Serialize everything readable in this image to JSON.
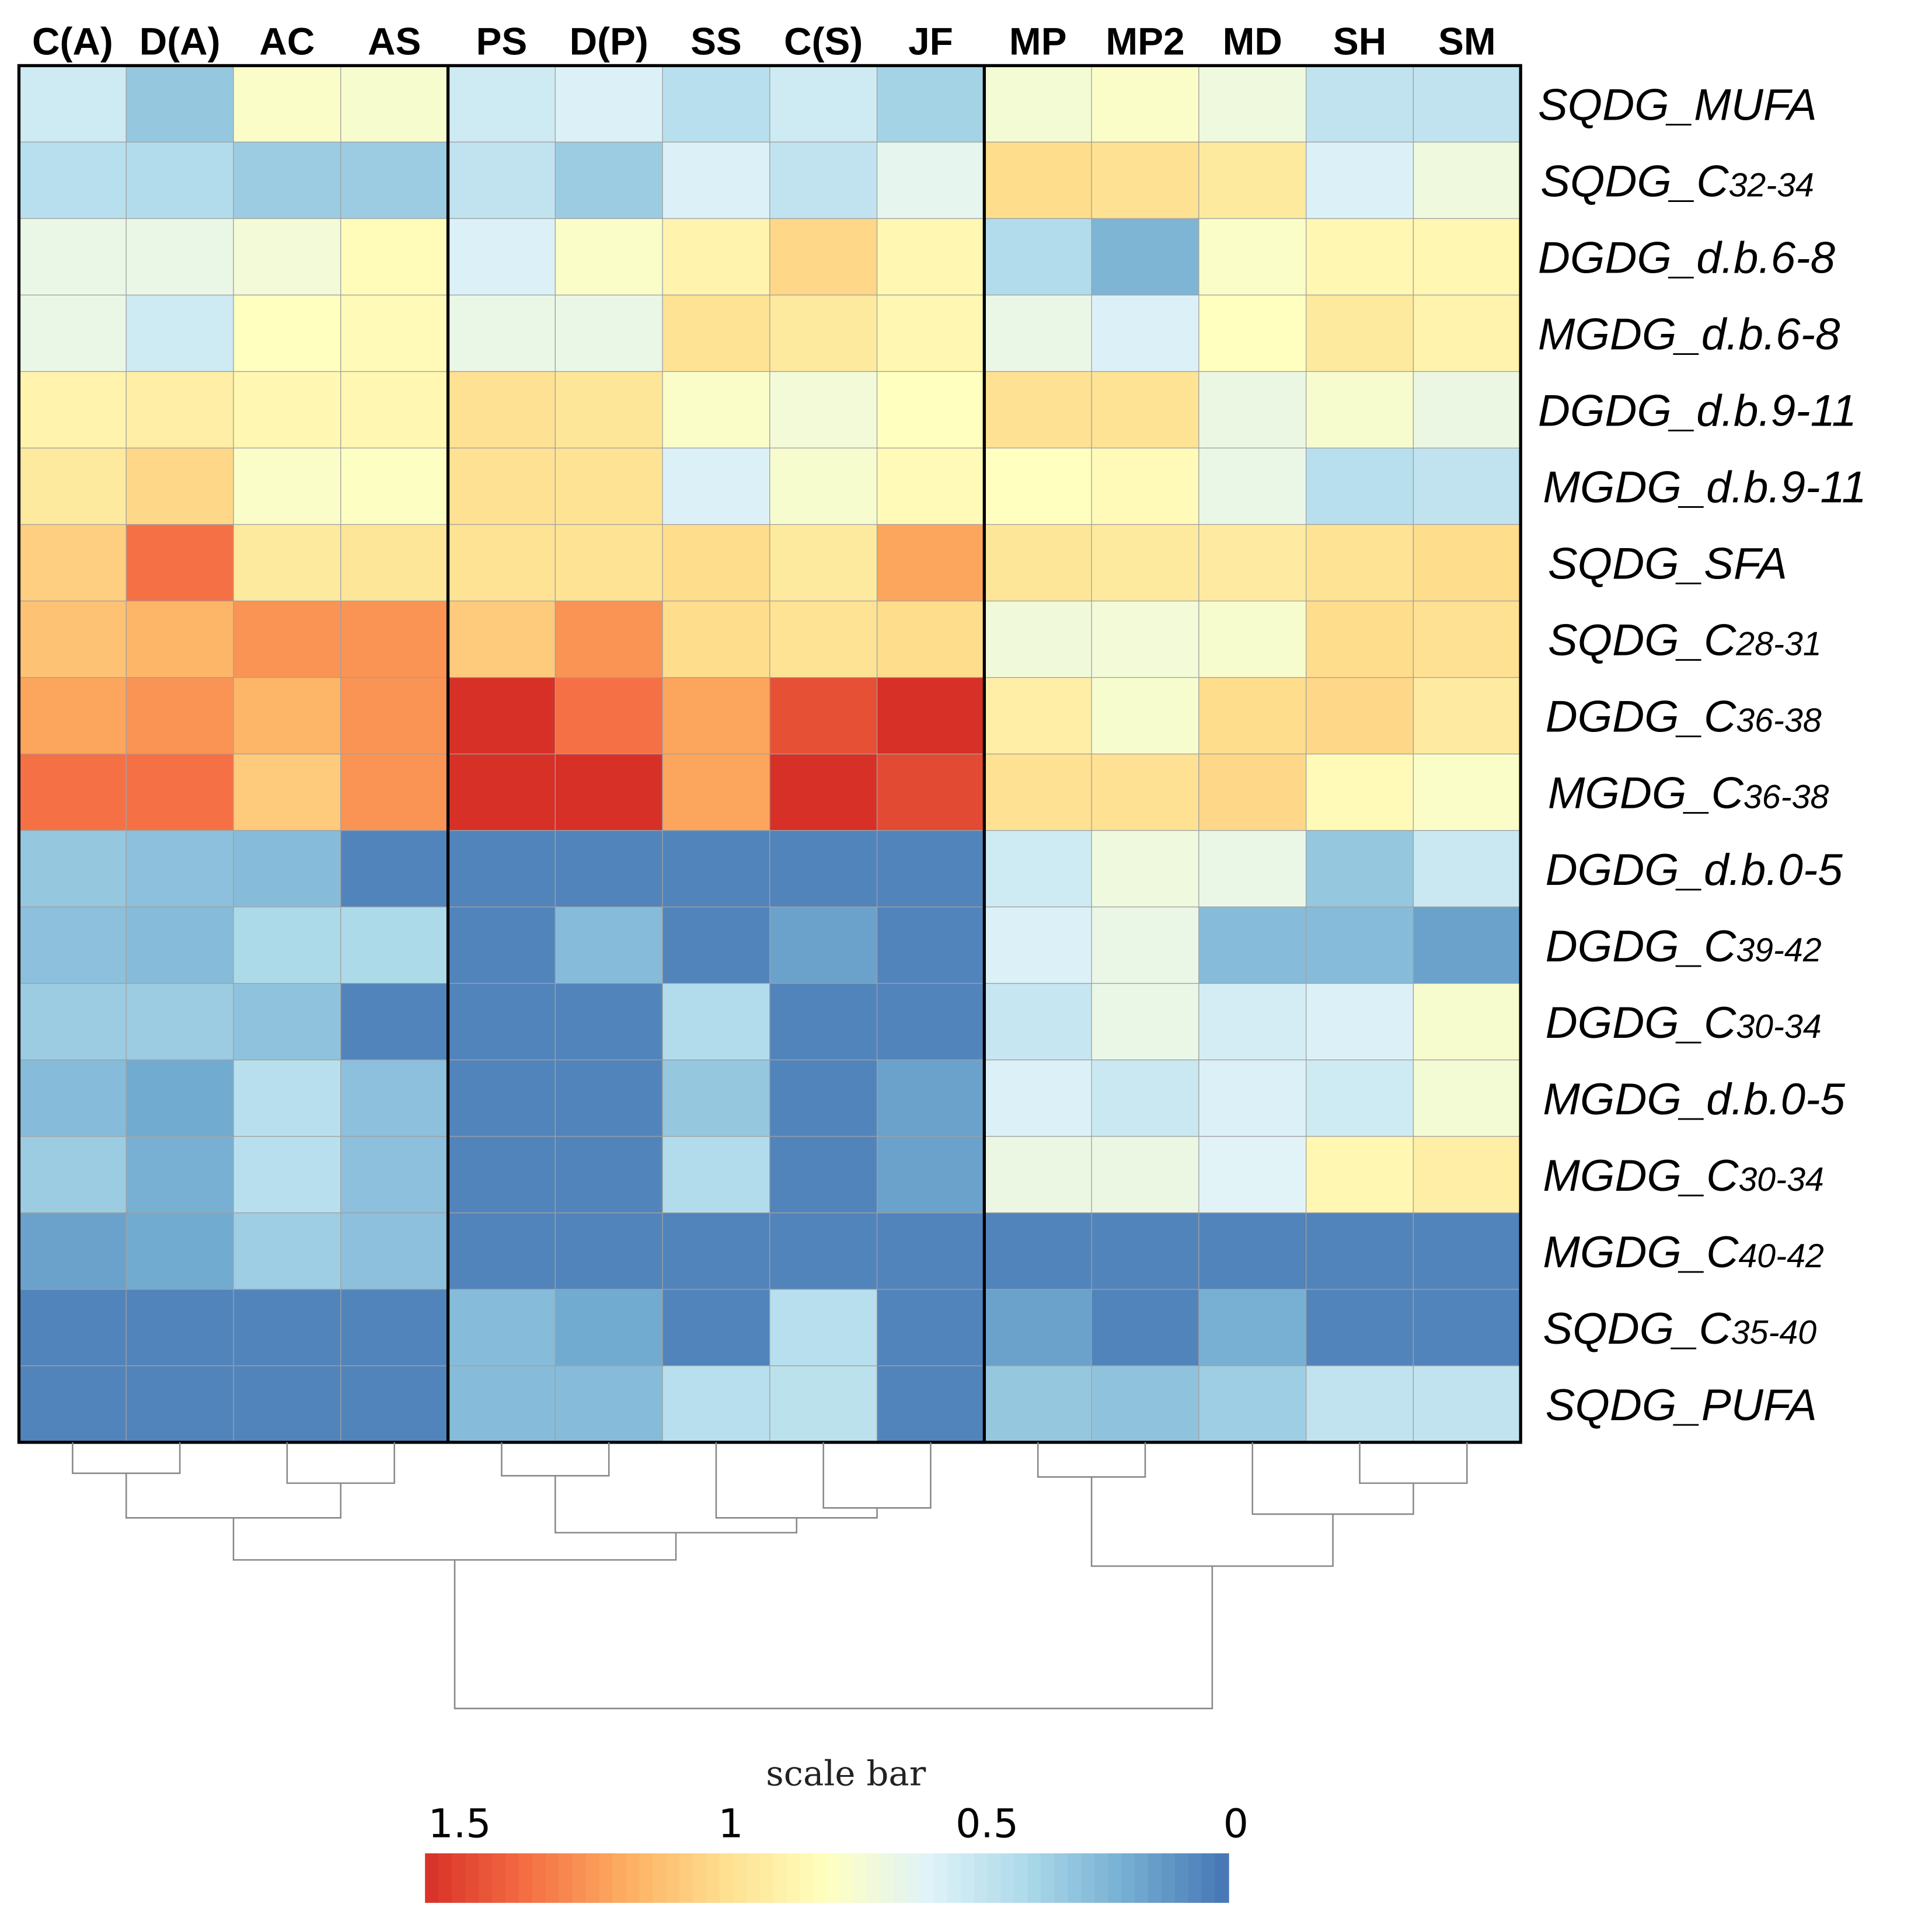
{
  "chart_data": {
    "type": "heatmap",
    "columns": [
      "C(A)",
      "D(A)",
      "AC",
      "AS",
      "PS",
      "D(P)",
      "SS",
      "C(S)",
      "JF",
      "MP",
      "MP2",
      "MD",
      "SH",
      "SM"
    ],
    "column_groups": [
      [
        "C(A)",
        "D(A)",
        "AC",
        "AS"
      ],
      [
        "PS",
        "D(P)",
        "SS",
        "C(S)",
        "JF"
      ],
      [
        "MP",
        "MP2",
        "MD",
        "SH",
        "SM"
      ]
    ],
    "rows": [
      {
        "main": "SQDG_MUFA",
        "sub": ""
      },
      {
        "main": "SQDG_C",
        "sub": "32-34"
      },
      {
        "main": "DGDG_d.b.6-8",
        "sub": ""
      },
      {
        "main": "MGDG_d.b.6-8",
        "sub": ""
      },
      {
        "main": "DGDG_d.b.9-11",
        "sub": ""
      },
      {
        "main": "MGDG_d.b.9-11",
        "sub": ""
      },
      {
        "main": "SQDG_SFA",
        "sub": ""
      },
      {
        "main": "SQDG_C",
        "sub": "28-31"
      },
      {
        "main": "DGDG_C",
        "sub": "36-38"
      },
      {
        "main": "MGDG_C",
        "sub": "36-38"
      },
      {
        "main": "DGDG_d.b.0-5",
        "sub": ""
      },
      {
        "main": "DGDG_C",
        "sub": "39-42"
      },
      {
        "main": "DGDG_C",
        "sub": "30-34"
      },
      {
        "main": "MGDG_d.b.0-5",
        "sub": ""
      },
      {
        "main": "MGDG_C",
        "sub": "30-34"
      },
      {
        "main": "MGDG_C",
        "sub": "40-42"
      },
      {
        "main": "SQDG_C",
        "sub": "35-40"
      },
      {
        "main": "SQDG_PUFA",
        "sub": ""
      }
    ],
    "values": [
      [
        0.5,
        0.3,
        0.72,
        0.7,
        0.5,
        0.55,
        0.42,
        0.5,
        0.35,
        0.68,
        0.72,
        0.65,
        0.45,
        0.45
      ],
      [
        0.42,
        0.4,
        0.32,
        0.32,
        0.45,
        0.32,
        0.55,
        0.45,
        0.6,
        0.95,
        0.93,
        0.88,
        0.55,
        0.65
      ],
      [
        0.62,
        0.62,
        0.67,
        0.77,
        0.55,
        0.72,
        0.82,
        0.97,
        0.8,
        0.4,
        0.22,
        0.72,
        0.8,
        0.8
      ],
      [
        0.62,
        0.5,
        0.75,
        0.78,
        0.62,
        0.62,
        0.92,
        0.88,
        0.8,
        0.62,
        0.55,
        0.75,
        0.88,
        0.82
      ],
      [
        0.82,
        0.85,
        0.8,
        0.8,
        0.93,
        0.9,
        0.72,
        0.67,
        0.75,
        0.93,
        0.92,
        0.63,
        0.7,
        0.63
      ],
      [
        0.88,
        0.97,
        0.72,
        0.74,
        0.93,
        0.92,
        0.55,
        0.7,
        0.78,
        0.75,
        0.78,
        0.62,
        0.42,
        0.45
      ],
      [
        1.0,
        1.3,
        0.88,
        0.9,
        0.92,
        0.92,
        0.95,
        0.88,
        1.15,
        0.9,
        0.88,
        0.87,
        0.92,
        0.95
      ],
      [
        1.05,
        1.1,
        1.2,
        1.2,
        1.02,
        1.2,
        0.95,
        0.92,
        0.95,
        0.66,
        0.67,
        0.7,
        0.95,
        0.93
      ],
      [
        1.15,
        1.2,
        1.1,
        1.2,
        1.5,
        1.3,
        1.15,
        1.4,
        1.5,
        0.85,
        0.7,
        0.95,
        0.97,
        0.87
      ],
      [
        1.3,
        1.3,
        1.02,
        1.2,
        1.5,
        1.5,
        1.15,
        1.5,
        1.42,
        0.93,
        0.93,
        0.97,
        0.78,
        0.72
      ],
      [
        0.3,
        0.27,
        0.25,
        0.05,
        0.05,
        0.05,
        0.05,
        0.05,
        0.05,
        0.5,
        0.65,
        0.62,
        0.3,
        0.48
      ],
      [
        0.27,
        0.25,
        0.38,
        0.38,
        0.05,
        0.25,
        0.05,
        0.15,
        0.05,
        0.55,
        0.62,
        0.25,
        0.25,
        0.15
      ],
      [
        0.32,
        0.32,
        0.28,
        0.05,
        0.05,
        0.05,
        0.4,
        0.05,
        0.05,
        0.47,
        0.62,
        0.52,
        0.55,
        0.7
      ],
      [
        0.25,
        0.18,
        0.42,
        0.27,
        0.05,
        0.05,
        0.3,
        0.05,
        0.15,
        0.55,
        0.48,
        0.55,
        0.5,
        0.68
      ],
      [
        0.32,
        0.2,
        0.42,
        0.27,
        0.05,
        0.05,
        0.4,
        0.05,
        0.15,
        0.63,
        0.63,
        0.57,
        0.8,
        0.85
      ],
      [
        0.15,
        0.18,
        0.33,
        0.27,
        0.05,
        0.05,
        0.05,
        0.05,
        0.05,
        0.05,
        0.05,
        0.05,
        0.05,
        0.05
      ],
      [
        0.05,
        0.05,
        0.05,
        0.05,
        0.25,
        0.18,
        0.05,
        0.42,
        0.05,
        0.15,
        0.05,
        0.2,
        0.05,
        0.05
      ],
      [
        0.05,
        0.05,
        0.05,
        0.05,
        0.25,
        0.25,
        0.42,
        0.43,
        0.05,
        0.3,
        0.28,
        0.33,
        0.45,
        0.45
      ]
    ],
    "color_scale": {
      "title": "scale bar",
      "min": 0,
      "max": 1.5,
      "ticks": [
        "1.5",
        "1",
        "0.5",
        "0"
      ],
      "colors": [
        "#d73027",
        "#f46d43",
        "#fdae61",
        "#fee090",
        "#ffffbf",
        "#e0f3f8",
        "#abd9e9",
        "#74add1",
        "#4575b4"
      ]
    },
    "dendrogram": "column clustering (bottom)"
  }
}
